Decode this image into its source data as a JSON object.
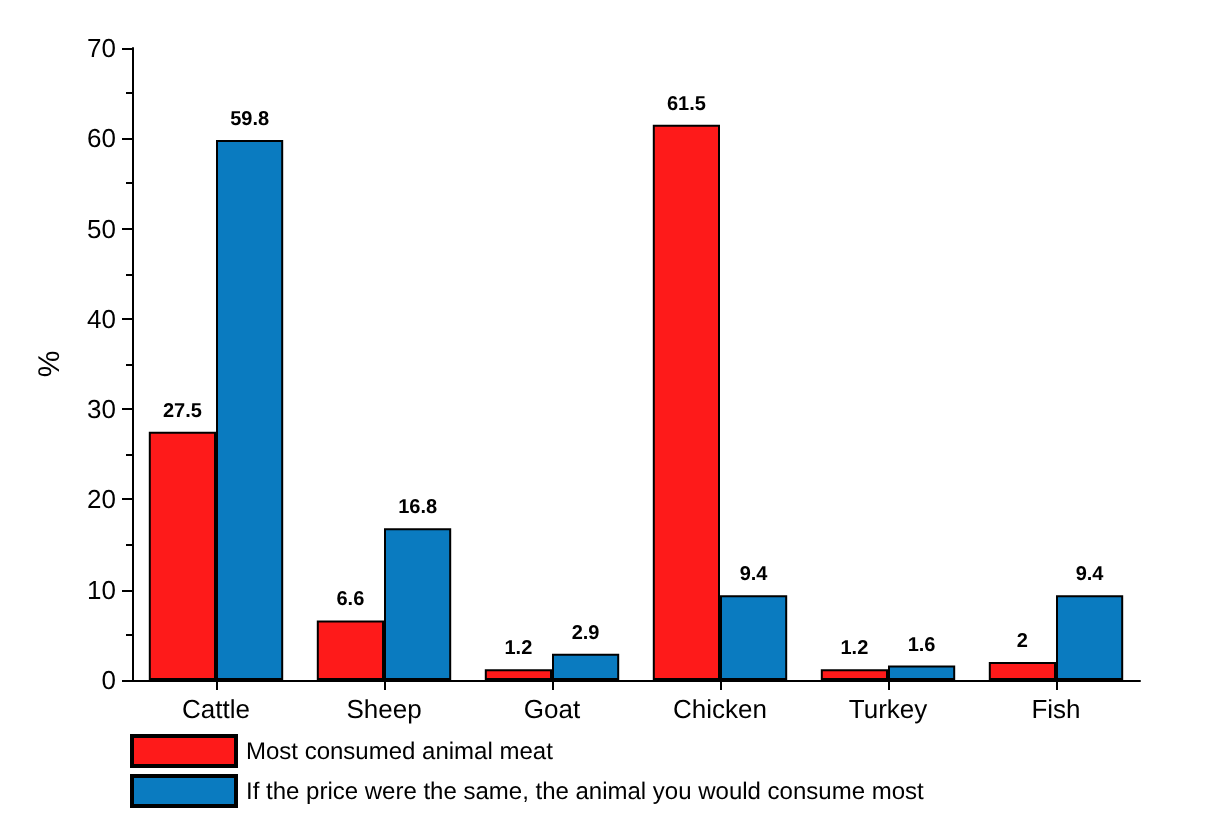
{
  "chart_data": {
    "type": "bar",
    "ylabel": "%",
    "categories": [
      "Cattle",
      "Sheep",
      "Goat",
      "Chicken",
      "Turkey",
      "Fish"
    ],
    "series": [
      {
        "name": "Most consumed animal meat",
        "color": "#fe1a1a",
        "values": [
          27.5,
          6.6,
          1.2,
          61.5,
          1.2,
          2
        ]
      },
      {
        "name": "If the price were the same, the animal you would consume most",
        "color": "#0a7bc0",
        "values": [
          59.8,
          16.8,
          2.9,
          9.4,
          1.6,
          9.4
        ]
      }
    ],
    "ylim": [
      0,
      70
    ],
    "yticks": [
      0,
      10,
      20,
      30,
      40,
      50,
      60,
      70
    ],
    "grid": false,
    "legend": "bottom left",
    "data_labels": true
  }
}
